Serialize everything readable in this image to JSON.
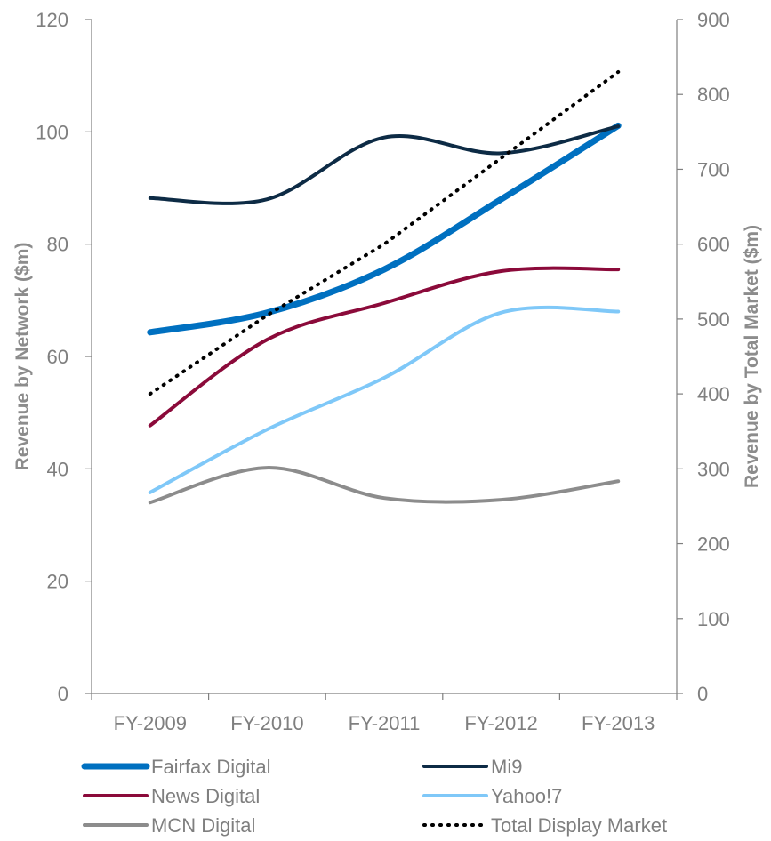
{
  "chart_data": {
    "type": "line",
    "title": "",
    "categories": [
      "FY-2009",
      "FY-2010",
      "FY-2011",
      "FY-2012",
      "FY-2013"
    ],
    "y_left": {
      "label": "Revenue by Network ($m)",
      "ylim": [
        0,
        120
      ],
      "ticks": [
        "0",
        "20",
        "40",
        "60",
        "80",
        "100",
        "120"
      ]
    },
    "y_right": {
      "label": "Revenue by Total Market ($m)",
      "ylim": [
        0,
        900
      ],
      "ticks": [
        "0",
        "100",
        "200",
        "300",
        "400",
        "500",
        "600",
        "700",
        "800",
        "900"
      ]
    },
    "grid": false,
    "legend_position": "bottom",
    "series": [
      {
        "name": "Fairfax Digital",
        "axis": "left",
        "values": [
          64.3,
          67.8,
          75.5,
          88.0,
          101.1
        ],
        "color": "#0070c0",
        "style": "solid-thick"
      },
      {
        "name": "Mi9",
        "axis": "left",
        "values": [
          88.2,
          88.0,
          99.0,
          96.2,
          101.0
        ],
        "color": "#0d2b45",
        "style": "solid"
      },
      {
        "name": "News Digital",
        "axis": "left",
        "values": [
          47.7,
          63.0,
          69.5,
          75.2,
          75.5
        ],
        "color": "#8b0a3a",
        "style": "solid"
      },
      {
        "name": "Yahoo!7",
        "axis": "left",
        "values": [
          35.8,
          47.0,
          56.2,
          67.8,
          68.0
        ],
        "color": "#7fc8f8",
        "style": "solid"
      },
      {
        "name": "MCN Digital",
        "axis": "left",
        "values": [
          34.0,
          40.2,
          34.8,
          34.5,
          37.8
        ],
        "color": "#8c8c8c",
        "style": "solid"
      },
      {
        "name": "Total Display Market",
        "axis": "right",
        "values": [
          400,
          505,
          600,
          715,
          830
        ],
        "color": "#000000",
        "style": "dotted"
      }
    ]
  },
  "colors": {
    "axis_line": "#7f7f7f",
    "tick_text": "#7f7f7f",
    "axis_title": "#8c8c8c"
  }
}
